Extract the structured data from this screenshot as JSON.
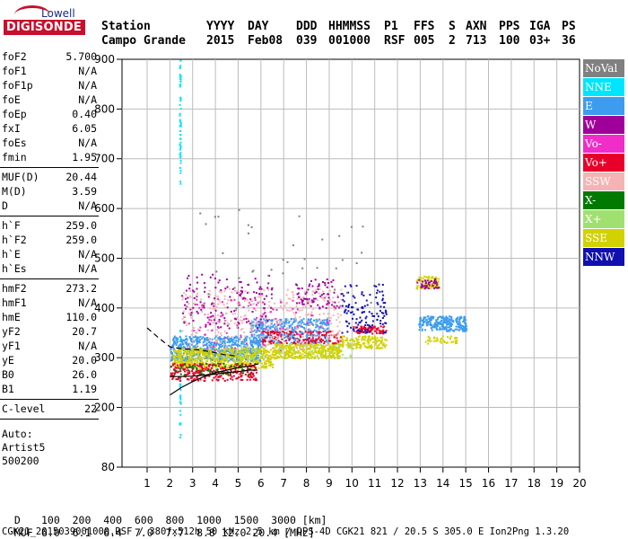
{
  "logo": {
    "line1": "Lowell",
    "line2": "DIGISONDE"
  },
  "header": {
    "row1": [
      {
        "text": "Station",
        "x": 113
      },
      {
        "text": "YYYY",
        "x": 230
      },
      {
        "text": "DAY",
        "x": 276
      },
      {
        "text": "DDD",
        "x": 330
      },
      {
        "text": "HHMMSS",
        "x": 366
      },
      {
        "text": "P1",
        "x": 428
      },
      {
        "text": "FFS",
        "x": 461
      },
      {
        "text": "S",
        "x": 500
      },
      {
        "text": "AXN",
        "x": 519
      },
      {
        "text": "PPS",
        "x": 556
      },
      {
        "text": "IGA",
        "x": 590
      },
      {
        "text": "PS",
        "x": 626
      }
    ],
    "row2": [
      {
        "text": "Campo Grande",
        "x": 113
      },
      {
        "text": "2015",
        "x": 230
      },
      {
        "text": "Feb08",
        "x": 276
      },
      {
        "text": "039",
        "x": 330
      },
      {
        "text": "001000",
        "x": 366
      },
      {
        "text": "RSF",
        "x": 428
      },
      {
        "text": "005",
        "x": 461
      },
      {
        "text": "2",
        "x": 500
      },
      {
        "text": "713",
        "x": 519
      },
      {
        "text": "100",
        "x": 556
      },
      {
        "text": "03+",
        "x": 590
      },
      {
        "text": "36",
        "x": 626
      }
    ]
  },
  "params": {
    "group1": [
      {
        "label": "foF2",
        "value": "5.700"
      },
      {
        "label": "foF1",
        "value": "N/A"
      },
      {
        "label": "foF1p",
        "value": "N/A"
      },
      {
        "label": "foE",
        "value": "N/A"
      },
      {
        "label": "foEp",
        "value": "0.40"
      },
      {
        "label": "fxI",
        "value": "6.05"
      },
      {
        "label": "foEs",
        "value": "N/A"
      },
      {
        "label": "fmin",
        "value": "1.95"
      }
    ],
    "group2": [
      {
        "label": "MUF(D)",
        "value": "20.44"
      },
      {
        "label": "M(D)",
        "value": "3.59"
      },
      {
        "label": "D",
        "value": "N/A"
      }
    ],
    "group3": [
      {
        "label": "h`F",
        "value": "259.0"
      },
      {
        "label": "h`F2",
        "value": "259.0"
      },
      {
        "label": "h`E",
        "value": "N/A"
      },
      {
        "label": "h`Es",
        "value": "N/A"
      }
    ],
    "group4": [
      {
        "label": "hmF2",
        "value": "273.2"
      },
      {
        "label": "hmF1",
        "value": "N/A"
      },
      {
        "label": "hmE",
        "value": "110.0"
      },
      {
        "label": "yF2",
        "value": "20.7"
      },
      {
        "label": "yF1",
        "value": "N/A"
      },
      {
        "label": "yE",
        "value": "20.0"
      },
      {
        "label": "B0",
        "value": "26.0"
      },
      {
        "label": "B1",
        "value": "1.19"
      }
    ],
    "group5": [
      {
        "label": "C-level",
        "value": "22"
      }
    ],
    "notes": [
      "Auto:",
      "Artist5",
      "500200"
    ]
  },
  "legend": [
    {
      "label": "NoVal",
      "color": "#808080"
    },
    {
      "label": "NNE",
      "color": "#00e5ff"
    },
    {
      "label": "E",
      "color": "#3d9cf0"
    },
    {
      "label": "W",
      "color": "#a0009a"
    },
    {
      "label": "Vo-",
      "color": "#f02dc8"
    },
    {
      "label": "Vo+",
      "color": "#e8002a"
    },
    {
      "label": "SSW",
      "color": "#f5b4b4"
    },
    {
      "label": "X-",
      "color": "#007a00"
    },
    {
      "label": "X+",
      "color": "#a0e070"
    },
    {
      "label": "SSE",
      "color": "#d2d200"
    },
    {
      "label": "NNW",
      "color": "#1010b0"
    }
  ],
  "chart_data": {
    "type": "scatter",
    "title": "",
    "xlabel": "",
    "ylabel": "",
    "xlim": [
      1,
      20
    ],
    "ylim": [
      80,
      900
    ],
    "x_ticks": [
      "1",
      "2",
      "3",
      "4",
      "5",
      "6",
      "7",
      "8",
      "9",
      "10",
      "11",
      "12",
      "13",
      "14",
      "15",
      "16",
      "17",
      "18",
      "19",
      "20"
    ],
    "y_ticks": [
      "80",
      "200",
      "300",
      "400",
      "500",
      "600",
      "700",
      "800",
      "900"
    ],
    "grid": true,
    "legend_position": "right",
    "clusters": [
      {
        "series": "NNE",
        "x": [
          2.4,
          2.45
        ],
        "y": [
          650,
          900
        ],
        "n": 60
      },
      {
        "series": "NNE",
        "x": [
          2.4,
          2.45
        ],
        "y": [
          140,
          360
        ],
        "n": 40
      },
      {
        "series": "E",
        "x": [
          2.0,
          6.0
        ],
        "y": [
          295,
          345
        ],
        "n": 700
      },
      {
        "series": "E",
        "x": [
          5.5,
          9.0
        ],
        "y": [
          330,
          380
        ],
        "n": 400
      },
      {
        "series": "E",
        "x": [
          12.9,
          15.0
        ],
        "y": [
          355,
          385
        ],
        "n": 260
      },
      {
        "series": "SSE",
        "x": [
          2.1,
          6.5
        ],
        "y": [
          280,
          320
        ],
        "n": 600
      },
      {
        "series": "SSE",
        "x": [
          6.5,
          9.5
        ],
        "y": [
          300,
          330
        ],
        "n": 400
      },
      {
        "series": "SSE",
        "x": [
          9.5,
          11.5
        ],
        "y": [
          320,
          345
        ],
        "n": 150
      },
      {
        "series": "SSE",
        "x": [
          12.8,
          13.8
        ],
        "y": [
          440,
          465
        ],
        "n": 80
      },
      {
        "series": "SSE",
        "x": [
          13.2,
          14.6
        ],
        "y": [
          330,
          345
        ],
        "n": 40
      },
      {
        "series": "Vo+",
        "x": [
          2.0,
          5.8
        ],
        "y": [
          255,
          290
        ],
        "n": 250
      },
      {
        "series": "Vo+",
        "x": [
          6.0,
          9.5
        ],
        "y": [
          330,
          355
        ],
        "n": 150
      },
      {
        "series": "Vo+",
        "x": [
          10.0,
          11.5
        ],
        "y": [
          350,
          365
        ],
        "n": 80
      },
      {
        "series": "W",
        "x": [
          2.5,
          6.5
        ],
        "y": [
          360,
          470
        ],
        "n": 150
      },
      {
        "series": "W",
        "x": [
          7.5,
          9.5
        ],
        "y": [
          400,
          460
        ],
        "n": 80
      },
      {
        "series": "W",
        "x": [
          12.8,
          13.8
        ],
        "y": [
          440,
          460
        ],
        "n": 40
      },
      {
        "series": "NNW",
        "x": [
          9.5,
          11.5
        ],
        "y": [
          350,
          450
        ],
        "n": 120
      },
      {
        "series": "SSW",
        "x": [
          2.5,
          9.5
        ],
        "y": [
          320,
          440
        ],
        "n": 350
      },
      {
        "series": "Vo-",
        "x": [
          3.0,
          9.0
        ],
        "y": [
          310,
          420
        ],
        "n": 80
      },
      {
        "series": "X-",
        "x": [
          2.0,
          5.5
        ],
        "y": [
          265,
          290
        ],
        "n": 60
      },
      {
        "series": "X+",
        "x": [
          5.0,
          10.0
        ],
        "y": [
          300,
          330
        ],
        "n": 60
      },
      {
        "series": "NoVal",
        "x": [
          3.0,
          11.0
        ],
        "y": [
          400,
          600
        ],
        "n": 40
      }
    ],
    "traces": [
      {
        "name": "o-trace",
        "points": [
          [
            2.0,
            225
          ],
          [
            2.5,
            240
          ],
          [
            3.0,
            252
          ],
          [
            3.5,
            262
          ],
          [
            4.0,
            270
          ],
          [
            4.5,
            275
          ],
          [
            5.0,
            280
          ],
          [
            5.6,
            284
          ],
          [
            5.9,
            288
          ]
        ]
      },
      {
        "name": "x-trace",
        "points": [
          [
            2.0,
            262
          ],
          [
            2.5,
            262
          ],
          [
            3.0,
            263
          ],
          [
            3.5,
            265
          ],
          [
            4.0,
            267
          ],
          [
            4.5,
            270
          ],
          [
            5.0,
            272
          ],
          [
            5.5,
            275
          ],
          [
            5.85,
            275
          ]
        ]
      },
      {
        "name": "profile-upper",
        "points": [
          [
            1.0,
            360
          ],
          [
            1.5,
            340
          ],
          [
            2.0,
            322
          ],
          [
            2.5,
            318
          ],
          [
            3.2,
            316
          ],
          [
            3.8,
            312
          ],
          [
            4.4,
            306
          ],
          [
            5.0,
            303
          ]
        ]
      }
    ]
  },
  "footer": {
    "row1_label": "D",
    "row1_values": "100  200  400  600  800  1000  1500  3000 [km]",
    "row2_label": "MUF",
    "row2_values": "6.0  6.1  6.4  7.0  7.7  8.8 12.0 20.4 [MHz]",
    "info": "CGK21_2015039001000.RSF / 380fx512h 50 kHz 2.5 km / DPS-4D CGK21 821 / 20.5 S 305.0 E Ion2Png 1.3.20"
  }
}
